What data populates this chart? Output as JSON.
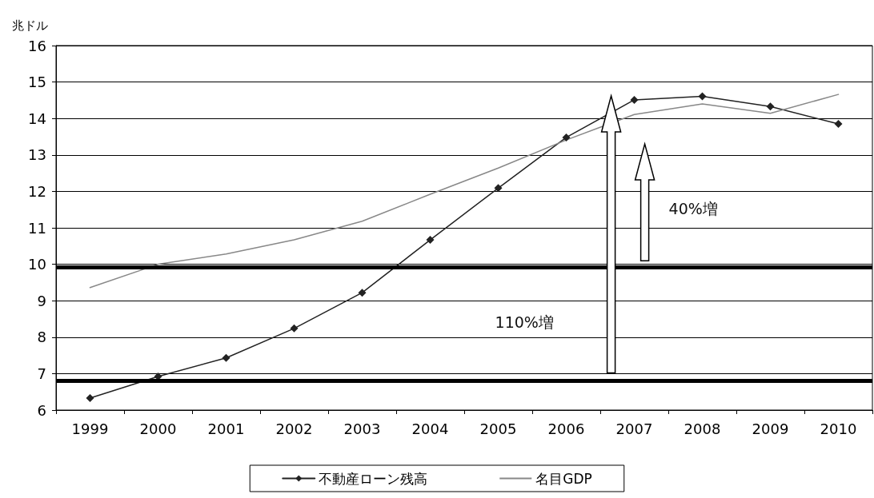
{
  "chart_data": {
    "type": "line",
    "ylabel": "兆ドル",
    "categories": [
      "1999",
      "2000",
      "2001",
      "2002",
      "2003",
      "2004",
      "2005",
      "2006",
      "2007",
      "2008",
      "2009",
      "2010"
    ],
    "series": [
      {
        "name": "不動産ローン残高",
        "color": "#222222",
        "marker": "diamond",
        "values": [
          6.33,
          6.92,
          7.43,
          8.24,
          9.22,
          10.67,
          12.09,
          13.48,
          14.51,
          14.61,
          14.33,
          13.85
        ]
      },
      {
        "name": "名目GDP",
        "color": "#888888",
        "marker": "none",
        "values": [
          9.36,
          10.0,
          10.28,
          10.67,
          11.18,
          11.92,
          12.64,
          13.41,
          14.11,
          14.4,
          14.14,
          14.66
        ]
      }
    ],
    "ylim": [
      6,
      16
    ],
    "yticks": [
      6,
      7,
      8,
      9,
      10,
      11,
      12,
      13,
      14,
      15,
      16
    ],
    "grid": "y",
    "legend": "bottom",
    "line_style": "solid",
    "ref_lines": [
      {
        "axis": "y",
        "value": 9.92,
        "color": "#000000"
      },
      {
        "axis": "y",
        "value": 6.8,
        "color": "#000000"
      }
    ],
    "annotations": [
      "110%増",
      "40%増"
    ]
  }
}
